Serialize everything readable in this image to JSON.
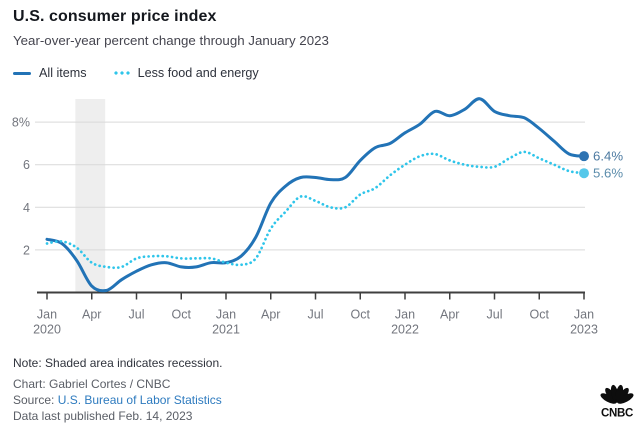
{
  "header": {
    "title": "U.S. consumer price index",
    "subtitle": "Year-over-year percent change through January 2023"
  },
  "legend": [
    {
      "label": "All items",
      "color": "#2273b6",
      "style": "solid"
    },
    {
      "label": "Less food and energy",
      "color": "#2fc5ea",
      "style": "dotted"
    }
  ],
  "chart_data": {
    "type": "line",
    "title": "U.S. consumer price index",
    "subtitle": "Year-over-year percent change through January 2023",
    "ylabel": "percent change year-over-year",
    "ylim": [
      0,
      9.2
    ],
    "grid": true,
    "yticks": [
      {
        "value": 2,
        "label": "2"
      },
      {
        "value": 4,
        "label": "4"
      },
      {
        "value": 6,
        "label": "6"
      },
      {
        "value": 8,
        "label": "8%"
      }
    ],
    "x_ticks": [
      {
        "index": 0,
        "month": "Jan",
        "year": "2020"
      },
      {
        "index": 3,
        "month": "Apr",
        "year": ""
      },
      {
        "index": 6,
        "month": "Jul",
        "year": ""
      },
      {
        "index": 9,
        "month": "Oct",
        "year": ""
      },
      {
        "index": 12,
        "month": "Jan",
        "year": "2021"
      },
      {
        "index": 15,
        "month": "Apr",
        "year": ""
      },
      {
        "index": 18,
        "month": "Jul",
        "year": ""
      },
      {
        "index": 21,
        "month": "Oct",
        "year": ""
      },
      {
        "index": 24,
        "month": "Jan",
        "year": "2022"
      },
      {
        "index": 27,
        "month": "Apr",
        "year": ""
      },
      {
        "index": 30,
        "month": "Jul",
        "year": ""
      },
      {
        "index": 33,
        "month": "Oct",
        "year": ""
      },
      {
        "index": 36,
        "month": "Jan",
        "year": "2023"
      }
    ],
    "categories": [
      "Jan 2020",
      "Feb 2020",
      "Mar 2020",
      "Apr 2020",
      "May 2020",
      "Jun 2020",
      "Jul 2020",
      "Aug 2020",
      "Sep 2020",
      "Oct 2020",
      "Nov 2020",
      "Dec 2020",
      "Jan 2021",
      "Feb 2021",
      "Mar 2021",
      "Apr 2021",
      "May 2021",
      "Jun 2021",
      "Jul 2021",
      "Aug 2021",
      "Sep 2021",
      "Oct 2021",
      "Nov 2021",
      "Dec 2021",
      "Jan 2022",
      "Feb 2022",
      "Mar 2022",
      "Apr 2022",
      "May 2022",
      "Jun 2022",
      "Jul 2022",
      "Aug 2022",
      "Sep 2022",
      "Oct 2022",
      "Nov 2022",
      "Dec 2022",
      "Jan 2023"
    ],
    "series": [
      {
        "name": "All items",
        "color": "#2273b6",
        "dash": "solid",
        "end_label": "6.4%",
        "end_label_color": "#4c7aa1",
        "end_dot_color": "#2e73b2",
        "values": [
          2.5,
          2.3,
          1.5,
          0.3,
          0.1,
          0.6,
          1.0,
          1.3,
          1.4,
          1.2,
          1.2,
          1.4,
          1.4,
          1.7,
          2.6,
          4.2,
          5.0,
          5.4,
          5.4,
          5.3,
          5.4,
          6.2,
          6.8,
          7.0,
          7.5,
          7.9,
          8.5,
          8.3,
          8.6,
          9.1,
          8.5,
          8.3,
          8.2,
          7.7,
          7.1,
          6.5,
          6.4
        ]
      },
      {
        "name": "Less food and energy",
        "color": "#2fc5ea",
        "dash": "dotted",
        "end_label": "5.6%",
        "end_label_color": "#5b8cab",
        "end_dot_color": "#55c8ea",
        "values": [
          2.3,
          2.4,
          2.1,
          1.4,
          1.2,
          1.2,
          1.6,
          1.7,
          1.7,
          1.6,
          1.6,
          1.6,
          1.4,
          1.3,
          1.6,
          3.0,
          3.8,
          4.5,
          4.3,
          4.0,
          4.0,
          4.6,
          4.9,
          5.5,
          6.0,
          6.4,
          6.5,
          6.2,
          6.0,
          5.9,
          5.9,
          6.3,
          6.6,
          6.3,
          6.0,
          5.7,
          5.6
        ]
      }
    ],
    "recession_band": {
      "start_index": 1.9,
      "end_index": 3.9,
      "start_label": "Feb 2020",
      "end_label": "Apr 2020",
      "fill": "#eeeeee"
    }
  },
  "footer": {
    "note": "Note: Shaded area indicates recession.",
    "credit": "Chart: Gabriel Cortes / CNBC",
    "source_prefix": "Source: ",
    "source_link": "U.S. Bureau of Labor Statistics",
    "updated": "Data last published Feb. 14, 2023",
    "logo_text": "CNBC"
  }
}
